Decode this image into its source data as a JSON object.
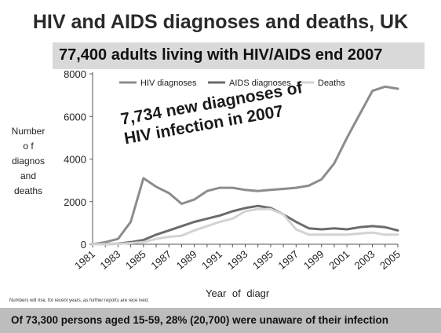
{
  "slide": {
    "title": "HIV and AIDS diagnoses and deaths, UK",
    "subtitle": "77,400 adults living with HIV/AIDS end 2007",
    "footnote": "Numbers will rise, for recent years, as further reports are rece   ived.",
    "bottom_text": "Of 73,300 persons aged 15-59, 28% (20,700) were unaware of their infection"
  },
  "chart_data": {
    "type": "line",
    "ylabel_lines": [
      "Number",
      "o f",
      "diagnos",
      "and",
      "deaths"
    ],
    "xlabel": "Year  of  diagr",
    "annotation": [
      "7,734 new  diagnoses of",
      "HIV infection in 2007"
    ],
    "x": [
      1981,
      1982,
      1983,
      1984,
      1985,
      1986,
      1987,
      1988,
      1989,
      1990,
      1991,
      1992,
      1993,
      1994,
      1995,
      1996,
      1997,
      1998,
      1999,
      2000,
      2001,
      2002,
      2003,
      2004,
      2005
    ],
    "xticks": [
      "1981",
      "1983",
      "1985",
      "1987",
      "1989",
      "1991",
      "1993",
      "1995",
      "1997",
      "1999",
      "2001",
      "2003",
      "2005"
    ],
    "yticks": [
      "0",
      "2000",
      "4000",
      "6000",
      "8000"
    ],
    "ylim": [
      0,
      8000
    ],
    "legend_position": "top",
    "series": [
      {
        "name": "HIV diagnoses",
        "color": "#8c8c8c",
        "values": [
          0,
          100,
          250,
          1050,
          3100,
          2700,
          2400,
          1900,
          2100,
          2500,
          2650,
          2650,
          2550,
          2500,
          2550,
          2600,
          2650,
          2750,
          3050,
          3800,
          5000,
          6100,
          7200,
          7400,
          7300
        ]
      },
      {
        "name": "AIDS diagnoses",
        "color": "#6b6b6b",
        "values": [
          0,
          0,
          30,
          100,
          200,
          450,
          650,
          850,
          1050,
          1200,
          1350,
          1550,
          1700,
          1800,
          1700,
          1400,
          1050,
          750,
          700,
          750,
          700,
          800,
          850,
          800,
          650
        ]
      },
      {
        "name": "Deaths",
        "color": "#d3d3d3",
        "values": [
          0,
          0,
          20,
          50,
          100,
          250,
          350,
          400,
          650,
          850,
          1050,
          1200,
          1550,
          1650,
          1650,
          1400,
          700,
          450,
          450,
          450,
          450,
          500,
          550,
          450,
          450
        ]
      }
    ]
  }
}
